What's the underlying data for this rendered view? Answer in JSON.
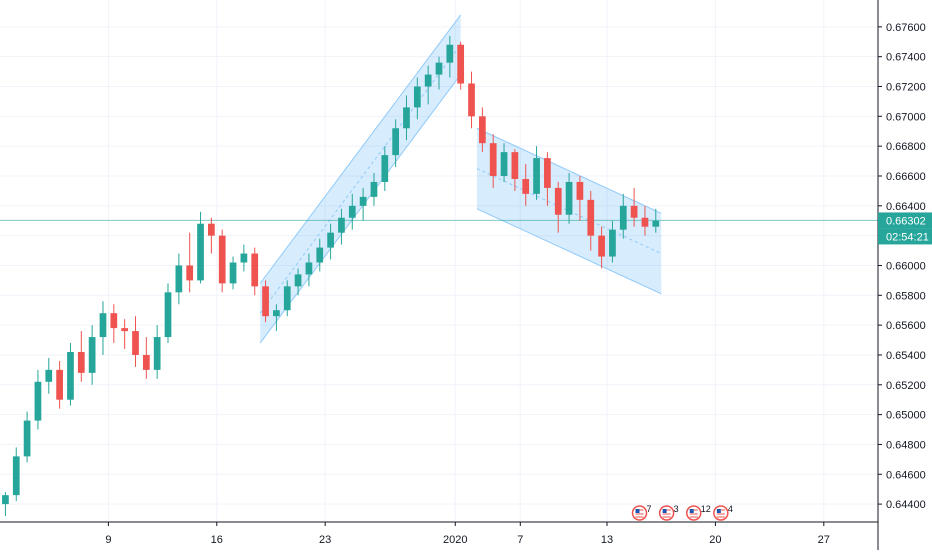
{
  "chart_data": {
    "type": "candlestick",
    "title": "",
    "xlabel": "",
    "ylabel": "",
    "colors": {
      "up": "#26a69a",
      "down": "#ef5350",
      "channel_fill": "#2196f3",
      "channel_line": "#90caf9",
      "price_line": "#26a69a",
      "grid": "#f0f3fa",
      "axis_text": "#131722",
      "price_tag_bg": "#26a69a",
      "price_tag_text": "#ffffff"
    },
    "ylim": [
      0.6428,
      0.6778
    ],
    "xlim": [
      0,
      81
    ],
    "y_ticks": [
      "0.64400",
      "0.64600",
      "0.64800",
      "0.65000",
      "0.65200",
      "0.65400",
      "0.65600",
      "0.65800",
      "0.66000",
      "0.66200",
      "0.66400",
      "0.66600",
      "0.66800",
      "0.67000",
      "0.67200",
      "0.67400",
      "0.67600"
    ],
    "x_ticks": [
      {
        "label": "9",
        "pos": 10
      },
      {
        "label": "16",
        "pos": 20
      },
      {
        "label": "23",
        "pos": 30
      },
      {
        "label": "2020",
        "pos": 42
      },
      {
        "label": "7",
        "pos": 48
      },
      {
        "label": "13",
        "pos": 56
      },
      {
        "label": "20",
        "pos": 66
      },
      {
        "label": "27",
        "pos": 76
      }
    ],
    "current_price": {
      "value": 0.66302,
      "label": "0.66302",
      "countdown": "02:54:21"
    },
    "candles": [
      [
        0.644,
        0.6448,
        0.6432,
        0.6446
      ],
      [
        0.6446,
        0.6478,
        0.6442,
        0.6472
      ],
      [
        0.6472,
        0.6502,
        0.6468,
        0.6496
      ],
      [
        0.6496,
        0.653,
        0.649,
        0.6522
      ],
      [
        0.6522,
        0.6538,
        0.6514,
        0.653
      ],
      [
        0.653,
        0.6536,
        0.6504,
        0.651
      ],
      [
        0.651,
        0.6548,
        0.6506,
        0.6542
      ],
      [
        0.6542,
        0.6556,
        0.6522,
        0.6528
      ],
      [
        0.6528,
        0.656,
        0.652,
        0.6552
      ],
      [
        0.6552,
        0.6576,
        0.654,
        0.6568
      ],
      [
        0.6568,
        0.6574,
        0.6548,
        0.6558
      ],
      [
        0.6558,
        0.6564,
        0.6544,
        0.6556
      ],
      [
        0.6556,
        0.6566,
        0.6532,
        0.654
      ],
      [
        0.654,
        0.6552,
        0.6524,
        0.653
      ],
      [
        0.653,
        0.656,
        0.6524,
        0.6552
      ],
      [
        0.6552,
        0.6588,
        0.6548,
        0.6582
      ],
      [
        0.6582,
        0.6608,
        0.6574,
        0.66
      ],
      [
        0.66,
        0.6622,
        0.6582,
        0.659
      ],
      [
        0.659,
        0.6636,
        0.6588,
        0.6628
      ],
      [
        0.6628,
        0.6632,
        0.6608,
        0.662
      ],
      [
        0.662,
        0.6624,
        0.6582,
        0.6588
      ],
      [
        0.6588,
        0.6606,
        0.6584,
        0.6602
      ],
      [
        0.6602,
        0.6614,
        0.6596,
        0.6608
      ],
      [
        0.6608,
        0.6612,
        0.658,
        0.6586
      ],
      [
        0.6586,
        0.659,
        0.6562,
        0.6566
      ],
      [
        0.6566,
        0.6574,
        0.6556,
        0.657
      ],
      [
        0.657,
        0.659,
        0.6566,
        0.6586
      ],
      [
        0.6586,
        0.6598,
        0.658,
        0.6594
      ],
      [
        0.6594,
        0.6608,
        0.6586,
        0.6602
      ],
      [
        0.6602,
        0.6618,
        0.6596,
        0.6612
      ],
      [
        0.6612,
        0.6628,
        0.6604,
        0.6622
      ],
      [
        0.6622,
        0.6638,
        0.6614,
        0.6632
      ],
      [
        0.6632,
        0.6648,
        0.6624,
        0.664
      ],
      [
        0.664,
        0.6652,
        0.663,
        0.6646
      ],
      [
        0.6646,
        0.6662,
        0.664,
        0.6656
      ],
      [
        0.6656,
        0.668,
        0.665,
        0.6674
      ],
      [
        0.6674,
        0.6698,
        0.6666,
        0.6692
      ],
      [
        0.6692,
        0.6714,
        0.6684,
        0.6706
      ],
      [
        0.6706,
        0.6726,
        0.6698,
        0.672
      ],
      [
        0.672,
        0.6734,
        0.6708,
        0.6728
      ],
      [
        0.6728,
        0.674,
        0.6718,
        0.6736
      ],
      [
        0.6736,
        0.6754,
        0.6726,
        0.6748
      ],
      [
        0.6748,
        0.675,
        0.6718,
        0.6722
      ],
      [
        0.6722,
        0.673,
        0.6692,
        0.67
      ],
      [
        0.67,
        0.6706,
        0.6676,
        0.6682
      ],
      [
        0.6682,
        0.6688,
        0.6652,
        0.666
      ],
      [
        0.666,
        0.6682,
        0.6656,
        0.6676
      ],
      [
        0.6676,
        0.6678,
        0.665,
        0.6658
      ],
      [
        0.6658,
        0.6668,
        0.664,
        0.6648
      ],
      [
        0.6648,
        0.668,
        0.6644,
        0.6672
      ],
      [
        0.6672,
        0.6676,
        0.664,
        0.6652
      ],
      [
        0.6652,
        0.6656,
        0.6622,
        0.6634
      ],
      [
        0.6634,
        0.6662,
        0.6628,
        0.6656
      ],
      [
        0.6656,
        0.666,
        0.663,
        0.6644
      ],
      [
        0.6644,
        0.665,
        0.661,
        0.662
      ],
      [
        0.662,
        0.6626,
        0.6598,
        0.6606
      ],
      [
        0.6606,
        0.663,
        0.6602,
        0.6624
      ],
      [
        0.6624,
        0.6648,
        0.6618,
        0.664
      ],
      [
        0.664,
        0.6652,
        0.6626,
        0.6632
      ],
      [
        0.6632,
        0.664,
        0.662,
        0.6626
      ],
      [
        0.6626,
        0.6638,
        0.6622,
        0.663
      ]
    ],
    "series": [
      {
        "type": "parallel_channel",
        "p1": [
          24,
          0.6588
        ],
        "p2": [
          42.5,
          0.6768
        ],
        "offset": -0.004
      },
      {
        "type": "parallel_channel",
        "p1": [
          44,
          0.6692
        ],
        "p2": [
          61,
          0.6635
        ],
        "offset": -0.0054
      }
    ],
    "event_markers": [
      {
        "icon": "us-flag-icon",
        "count": "7",
        "pos": 59
      },
      {
        "icon": "us-flag-icon",
        "count": "3",
        "pos": 61.5
      },
      {
        "icon": "us-flag-icon",
        "count": "12",
        "pos": 64
      },
      {
        "icon": "us-flag-icon",
        "count": "4",
        "pos": 66.5
      }
    ]
  }
}
